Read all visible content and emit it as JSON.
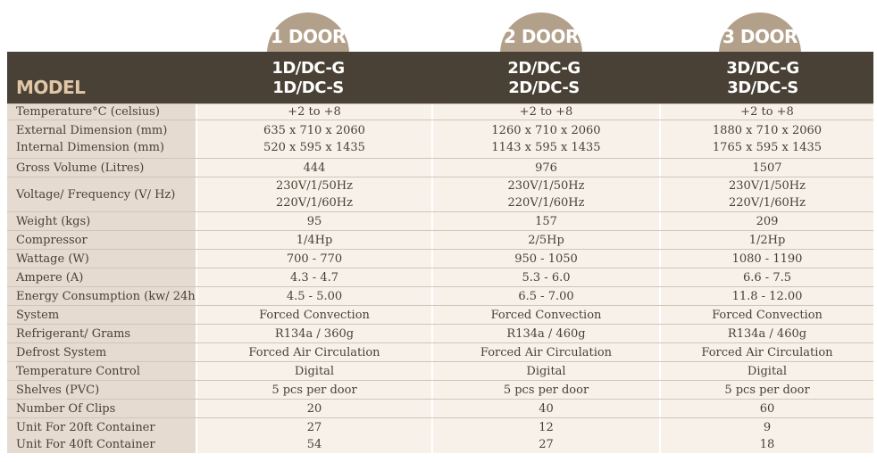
{
  "header": {
    "doors": [
      "1 DOOR",
      "2 DOOR",
      "3 DOOR"
    ],
    "model_label": "MODEL",
    "models": [
      [
        "1D/DC-G",
        "1D/DC-S"
      ],
      [
        "2D/DC-G",
        "2D/DC-S"
      ],
      [
        "3D/DC-G",
        "3D/DC-S"
      ]
    ]
  },
  "rows": [
    {
      "label": [
        "Temperature°C (celsius)"
      ],
      "v1": [
        "+2 to +8"
      ],
      "v2": [
        "+2 to +8"
      ],
      "v3": [
        "+2 to +8"
      ]
    },
    {
      "label": [
        "External Dimension (mm)",
        "Internal Dimension (mm)"
      ],
      "v1": [
        "635 x 710 x 2060",
        "520 x 595 x 1435"
      ],
      "v2": [
        "1260 x 710 x 2060",
        "1143 x 595 x 1435"
      ],
      "v3": [
        "1880 x 710 x 2060",
        "1765 x 595 x 1435"
      ]
    },
    {
      "label": [
        "Gross Volume (Litres)"
      ],
      "v1": [
        "444"
      ],
      "v2": [
        "976"
      ],
      "v3": [
        "1507"
      ]
    },
    {
      "label": [
        "Voltage/ Frequency (V/ Hz)"
      ],
      "v1": [
        "230V/1/50Hz",
        "220V/1/60Hz"
      ],
      "v2": [
        "230V/1/50Hz",
        "220V/1/60Hz"
      ],
      "v3": [
        "230V/1/50Hz",
        "220V/1/60Hz"
      ]
    },
    {
      "label": [
        "Weight (kgs)"
      ],
      "v1": [
        "95"
      ],
      "v2": [
        "157"
      ],
      "v3": [
        "209"
      ]
    },
    {
      "label": [
        "Compressor"
      ],
      "v1": [
        "1/4Hp"
      ],
      "v2": [
        "2/5Hp"
      ],
      "v3": [
        "1/2Hp"
      ]
    },
    {
      "label": [
        "Wattage (W)"
      ],
      "v1": [
        "700 - 770"
      ],
      "v2": [
        "950 - 1050"
      ],
      "v3": [
        "1080 - 1190"
      ]
    },
    {
      "label": [
        "Ampere (A)"
      ],
      "v1": [
        "4.3 - 4.7"
      ],
      "v2": [
        "5.3 - 6.0"
      ],
      "v3": [
        "6.6 - 7.5"
      ]
    },
    {
      "label": [
        "Energy Consumption (kw/ 24h)"
      ],
      "v1": [
        "4.5 - 5.00"
      ],
      "v2": [
        "6.5 - 7.00"
      ],
      "v3": [
        "11.8 - 12.00"
      ]
    },
    {
      "label": [
        "System"
      ],
      "v1": [
        "Forced Convection"
      ],
      "v2": [
        "Forced Convection"
      ],
      "v3": [
        "Forced Convection"
      ]
    },
    {
      "label": [
        "Refrigerant/ Grams"
      ],
      "v1": [
        "R134a / 360g"
      ],
      "v2": [
        "R134a / 460g"
      ],
      "v3": [
        "R134a / 460g"
      ]
    },
    {
      "label": [
        "Defrost System"
      ],
      "v1": [
        "Forced Air Circulation"
      ],
      "v2": [
        "Forced Air Circulation"
      ],
      "v3": [
        "Forced Air Circulation"
      ]
    },
    {
      "label": [
        "Temperature Control"
      ],
      "v1": [
        "Digital"
      ],
      "v2": [
        "Digital"
      ],
      "v3": [
        "Digital"
      ]
    },
    {
      "label": [
        "Shelves (PVC)"
      ],
      "v1": [
        "5 pcs per door"
      ],
      "v2": [
        "5 pcs per door"
      ],
      "v3": [
        "5 pcs per door"
      ]
    },
    {
      "label": [
        "Number Of Clips"
      ],
      "v1": [
        "20"
      ],
      "v2": [
        "40"
      ],
      "v3": [
        "60"
      ]
    },
    {
      "label": [
        "Unit For 20ft Container",
        "Unit For 40ft Container"
      ],
      "v1": [
        "27",
        "54"
      ],
      "v2": [
        "12",
        "27"
      ],
      "v3": [
        "9",
        "18"
      ]
    }
  ]
}
